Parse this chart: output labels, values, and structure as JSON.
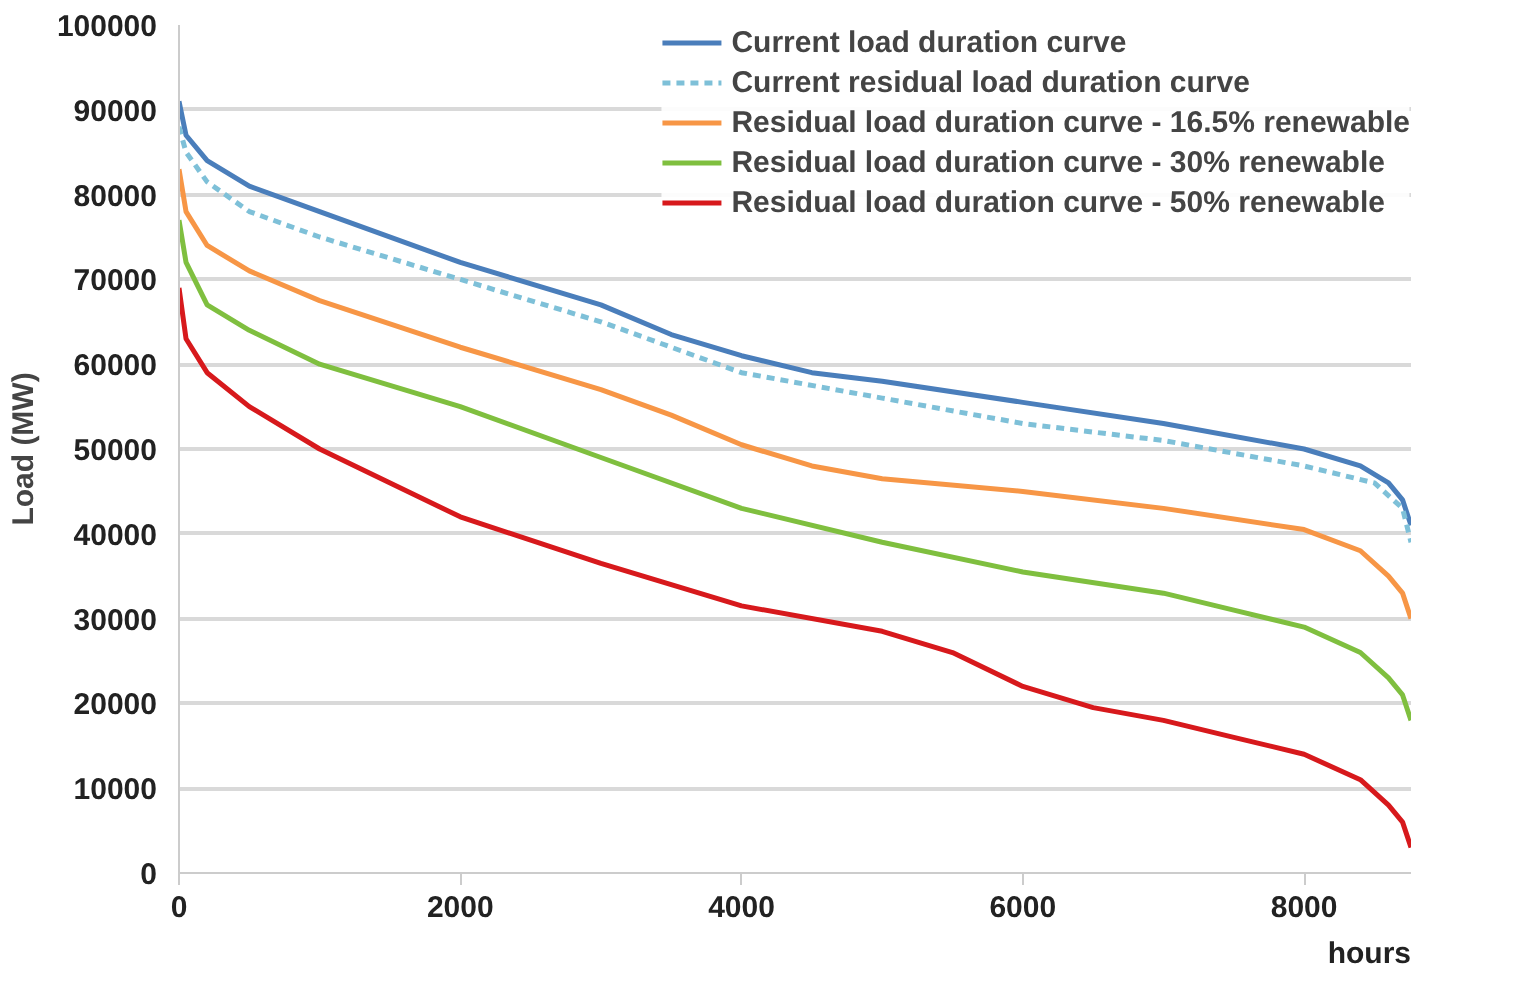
{
  "chart_data": {
    "type": "line",
    "xlabel": "hours",
    "ylabel": "Load (MW)",
    "xlim": [
      0,
      8760
    ],
    "ylim": [
      0,
      100000
    ],
    "xticks": [
      0,
      2000,
      4000,
      6000,
      8000
    ],
    "yticks": [
      0,
      10000,
      20000,
      30000,
      40000,
      50000,
      60000,
      70000,
      80000,
      90000,
      100000
    ],
    "grid": "y",
    "legend": "top right",
    "marker": "none",
    "series": [
      {
        "name": "Current load duration curve",
        "color": "#4a7ebb",
        "line_style": "solid",
        "x": [
          0,
          50,
          200,
          500,
          1000,
          2000,
          3000,
          3500,
          4000,
          4500,
          5000,
          6000,
          7000,
          8000,
          8400,
          8600,
          8700,
          8760
        ],
        "values": [
          91000,
          87000,
          84000,
          81000,
          78000,
          72000,
          67000,
          63500,
          61000,
          59000,
          58000,
          55500,
          53000,
          50000,
          48000,
          46000,
          44000,
          41000
        ]
      },
      {
        "name": "Current residual load duration curve",
        "color": "#7ec0d8",
        "line_style": "dashed",
        "x": [
          0,
          50,
          200,
          500,
          1000,
          2000,
          3000,
          4000,
          5000,
          6000,
          7000,
          8000,
          8500,
          8700,
          8760
        ],
        "values": [
          88000,
          85000,
          81500,
          78000,
          75000,
          70000,
          65000,
          59000,
          56000,
          53000,
          51000,
          48000,
          46000,
          43000,
          39000
        ]
      },
      {
        "name": "Residual load duration curve - 16.5% renewable",
        "color": "#f79646",
        "line_style": "solid",
        "x": [
          0,
          50,
          200,
          500,
          1000,
          2000,
          3000,
          3500,
          4000,
          4500,
          5000,
          6000,
          7000,
          8000,
          8400,
          8600,
          8700,
          8760
        ],
        "values": [
          83000,
          78000,
          74000,
          71000,
          67500,
          62000,
          57000,
          54000,
          50500,
          48000,
          46500,
          45000,
          43000,
          40500,
          38000,
          35000,
          33000,
          30000
        ]
      },
      {
        "name": "Residual load duration curve - 30% renewable",
        "color": "#7fbf3f",
        "line_style": "solid",
        "x": [
          0,
          50,
          200,
          500,
          1000,
          2000,
          3000,
          4000,
          5000,
          6000,
          7000,
          7500,
          8000,
          8400,
          8600,
          8700,
          8760
        ],
        "values": [
          77000,
          72000,
          67000,
          64000,
          60000,
          55000,
          49000,
          43000,
          39000,
          35500,
          33000,
          31000,
          29000,
          26000,
          23000,
          21000,
          18000
        ]
      },
      {
        "name": "Residual load duration curve - 50% renewable",
        "color": "#d7191c",
        "line_style": "solid",
        "x": [
          0,
          50,
          200,
          500,
          1000,
          2000,
          3000,
          4000,
          5000,
          5500,
          6000,
          6500,
          7000,
          7500,
          8000,
          8400,
          8600,
          8700,
          8760
        ],
        "values": [
          69000,
          63000,
          59000,
          55000,
          50000,
          42000,
          36500,
          31500,
          28500,
          26000,
          22000,
          19500,
          18000,
          16000,
          14000,
          11000,
          8000,
          6000,
          3000
        ]
      }
    ]
  }
}
